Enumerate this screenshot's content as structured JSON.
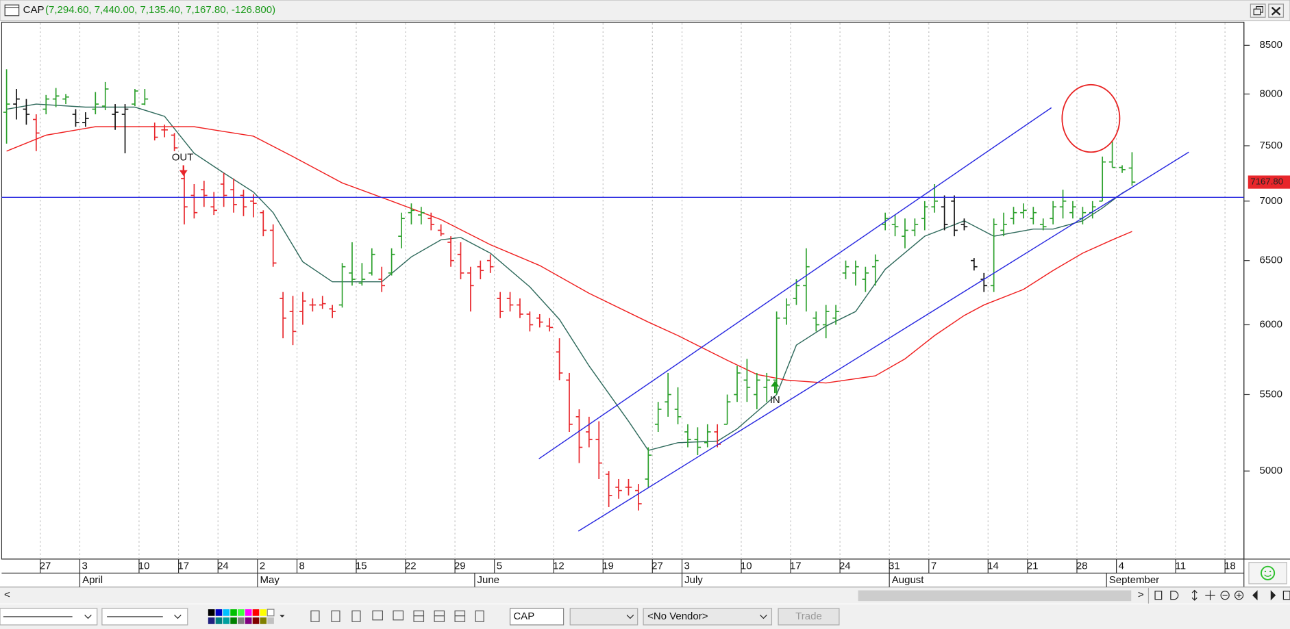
{
  "chart_data": {
    "type": "ohlc",
    "title": "CAP",
    "title_values": "(7,294.60, 7,440.00, 7,135.40, 7,167.80, -126.800)",
    "log_scale": true,
    "ylim": [
      4480,
      8740
    ],
    "yticks": [
      5000,
      5500,
      6000,
      6500,
      7000,
      7500,
      8000,
      8500
    ],
    "palette": {
      "g": "#2ca02c",
      "r": "#e8262b",
      "k": "#111111"
    },
    "categories": [
      null,
      null,
      null,
      null,
      "27",
      null,
      null,
      null,
      "3",
      null,
      null,
      null,
      null,
      null,
      "10",
      null,
      null,
      null,
      "17",
      null,
      null,
      null,
      "24",
      null,
      null,
      null,
      "2",
      null,
      null,
      null,
      "8",
      null,
      null,
      null,
      null,
      null,
      "15",
      null,
      null,
      null,
      null,
      "22",
      null,
      null,
      null,
      null,
      "29",
      null,
      null,
      null,
      "5",
      null,
      null,
      null,
      null,
      null,
      "12",
      null,
      null,
      null,
      null,
      "19",
      null,
      null,
      null,
      null,
      "27",
      null,
      null,
      "3",
      null,
      null,
      null,
      null,
      null,
      "10",
      null,
      null,
      null,
      null,
      "17",
      null,
      null,
      null,
      null,
      "24",
      null,
      null,
      null,
      null,
      "31",
      null,
      null,
      null,
      "7",
      null,
      null,
      null,
      null,
      null,
      "14",
      null,
      null,
      null,
      "21",
      null,
      null,
      null,
      null,
      "28",
      null,
      null,
      null,
      "4",
      null,
      null,
      null,
      null,
      null,
      "11",
      null,
      null,
      null,
      null,
      "18",
      null
    ],
    "months": [
      null,
      null,
      null,
      null,
      null,
      null,
      null,
      null,
      "April",
      null,
      null,
      null,
      null,
      null,
      null,
      null,
      null,
      null,
      null,
      null,
      null,
      null,
      null,
      null,
      null,
      null,
      "May",
      null,
      null,
      null,
      null,
      null,
      null,
      null,
      null,
      null,
      null,
      null,
      null,
      null,
      null,
      null,
      null,
      null,
      null,
      null,
      null,
      null,
      "June",
      null,
      null,
      null,
      null,
      null,
      null,
      null,
      null,
      null,
      null,
      null,
      null,
      null,
      null,
      null,
      null,
      null,
      null,
      null,
      null,
      "July",
      null,
      null,
      null,
      null,
      null,
      null,
      null,
      null,
      null,
      null,
      null,
      null,
      null,
      null,
      null,
      null,
      null,
      null,
      null,
      null,
      "August",
      null,
      null,
      null,
      null,
      null,
      null,
      null,
      null,
      null,
      null,
      null,
      null,
      null,
      null,
      null,
      null,
      null,
      null,
      null,
      null,
      null,
      "September",
      null,
      null,
      null,
      null,
      null,
      null,
      null,
      null,
      null,
      null,
      null,
      null,
      null
    ],
    "ohlc": [
      [
        7820,
        8250,
        7520,
        7900
      ],
      [
        7900,
        8050,
        7750,
        7950
      ],
      [
        7850,
        7950,
        7700,
        7800
      ],
      [
        7750,
        7800,
        7450,
        7620
      ],
      [
        7850,
        7990,
        7800,
        7950
      ],
      [
        7950,
        8060,
        7870,
        7980
      ],
      [
        7950,
        8000,
        7900,
        7970
      ],
      [
        7800,
        7850,
        7680,
        7720
      ],
      [
        7720,
        7820,
        7680,
        7760
      ],
      [
        7850,
        8020,
        7800,
        7900
      ],
      [
        7880,
        8120,
        7840,
        8050
      ],
      [
        7800,
        7900,
        7650,
        7820
      ],
      [
        7800,
        7900,
        7430,
        7850
      ],
      [
        7900,
        8050,
        7880,
        8030
      ],
      [
        7900,
        8050,
        7890,
        7950
      ],
      [
        7680,
        7720,
        7550,
        7580
      ],
      [
        7650,
        7700,
        7580,
        7650
      ],
      [
        7600,
        7620,
        7450,
        7480
      ],
      [
        7200,
        7250,
        6800,
        6950
      ],
      [
        7050,
        7150,
        6850,
        6900
      ],
      [
        7100,
        7180,
        6950,
        7050
      ],
      [
        6950,
        7080,
        6880,
        6920
      ],
      [
        7150,
        7250,
        6950,
        7050
      ],
      [
        7100,
        7200,
        6900,
        6970
      ],
      [
        7050,
        7100,
        6870,
        6950
      ],
      [
        7000,
        7060,
        6860,
        6980
      ],
      [
        6900,
        6920,
        6700,
        6750
      ],
      [
        6750,
        6800,
        6450,
        6480
      ],
      [
        6200,
        6250,
        5900,
        6050
      ],
      [
        6100,
        6220,
        5850,
        5950
      ],
      [
        6100,
        6250,
        6000,
        6180
      ],
      [
        6150,
        6200,
        6100,
        6150
      ],
      [
        6150,
        6220,
        6120,
        6160
      ],
      [
        6120,
        6150,
        6050,
        6100
      ],
      [
        6150,
        6480,
        6130,
        6450
      ],
      [
        6400,
        6650,
        6300,
        6350
      ],
      [
        6320,
        6480,
        6300,
        6350
      ],
      [
        6400,
        6600,
        6380,
        6550
      ],
      [
        6350,
        6450,
        6250,
        6300
      ],
      [
        6400,
        6600,
        6380,
        6550
      ],
      [
        6700,
        6900,
        6600,
        6850
      ],
      [
        6900,
        6980,
        6800,
        6920
      ],
      [
        6880,
        6950,
        6800,
        6900
      ],
      [
        6850,
        6900,
        6750,
        6800
      ],
      [
        6750,
        6800,
        6700,
        6720
      ],
      [
        6650,
        6700,
        6450,
        6500
      ],
      [
        6550,
        6650,
        6350,
        6400
      ],
      [
        6400,
        6450,
        6100,
        6300
      ],
      [
        6450,
        6500,
        6350,
        6420
      ],
      [
        6500,
        6550,
        6400,
        6450
      ],
      [
        6200,
        6250,
        6050,
        6100
      ],
      [
        6200,
        6250,
        6100,
        6150
      ],
      [
        6150,
        6200,
        6050,
        6080
      ],
      [
        6080,
        6100,
        5950,
        6000
      ],
      [
        6050,
        6080,
        5980,
        6020
      ],
      [
        5990,
        6050,
        5950,
        5980
      ],
      [
        5800,
        5900,
        5600,
        5650
      ],
      [
        5600,
        5650,
        5250,
        5300
      ],
      [
        5350,
        5400,
        5050,
        5150
      ],
      [
        5250,
        5350,
        5150,
        5200
      ],
      [
        5200,
        5320,
        4950,
        5050
      ],
      [
        4980,
        5000,
        4780,
        4850
      ],
      [
        4900,
        4950,
        4830,
        4880
      ],
      [
        4900,
        4950,
        4850,
        4900
      ],
      [
        4880,
        4920,
        4760,
        4800
      ],
      [
        4950,
        5150,
        4900,
        5100
      ],
      [
        5300,
        5450,
        5250,
        5400
      ],
      [
        5450,
        5650,
        5350,
        5500
      ],
      [
        5400,
        5550,
        5300,
        5350
      ],
      [
        5250,
        5300,
        5150,
        5200
      ],
      [
        5200,
        5280,
        5100,
        5150
      ],
      [
        5180,
        5300,
        5150,
        5250
      ],
      [
        5250,
        5300,
        5150,
        5170
      ],
      [
        5300,
        5500,
        5300,
        5450
      ],
      [
        5500,
        5700,
        5450,
        5650
      ],
      [
        5600,
        5750,
        5450,
        5550
      ],
      [
        5500,
        5650,
        5400,
        5600
      ],
      [
        5550,
        5650,
        5450,
        5600
      ],
      [
        5600,
        6100,
        5500,
        6050
      ],
      [
        6050,
        6200,
        6000,
        6150
      ],
      [
        6200,
        6350,
        6150,
        6300
      ],
      [
        6300,
        6600,
        6100,
        6450
      ],
      [
        6050,
        6100,
        5950,
        6000
      ],
      [
        6000,
        6150,
        5900,
        6100
      ],
      [
        6050,
        6150,
        6000,
        6100
      ],
      [
        6400,
        6500,
        6350,
        6450
      ],
      [
        6400,
        6500,
        6300,
        6450
      ],
      [
        6350,
        6450,
        6250,
        6400
      ],
      [
        6450,
        6550,
        6300,
        6500
      ],
      [
        6800,
        6900,
        6750,
        6850
      ],
      [
        6800,
        6880,
        6700,
        6780
      ],
      [
        6700,
        6850,
        6600,
        6750
      ],
      [
        6750,
        6850,
        6700,
        6800
      ],
      [
        6850,
        7000,
        6750,
        6950
      ],
      [
        6950,
        7150,
        6900,
        7000
      ],
      [
        6950,
        7050,
        6750,
        6800
      ],
      [
        7000,
        7050,
        6700,
        6750
      ],
      [
        6800,
        6850,
        6750,
        6780
      ],
      [
        6500,
        6520,
        6420,
        6450
      ],
      [
        6350,
        6400,
        6250,
        6300
      ],
      [
        6300,
        6850,
        6250,
        6800
      ],
      [
        6750,
        6900,
        6700,
        6800
      ],
      [
        6850,
        6950,
        6800,
        6900
      ],
      [
        6900,
        6980,
        6850,
        6920
      ],
      [
        6850,
        6950,
        6800,
        6900
      ],
      [
        6800,
        6850,
        6750,
        6780
      ],
      [
        6850,
        7000,
        6800,
        6950
      ],
      [
        6950,
        7100,
        6850,
        7000
      ],
      [
        6900,
        7000,
        6850,
        6950
      ],
      [
        6850,
        6950,
        6800,
        6900
      ],
      [
        6900,
        7000,
        6850,
        6950
      ],
      [
        7000,
        7400,
        7000,
        7350
      ],
      [
        7350,
        7550,
        7300,
        7300
      ],
      [
        7300,
        7320,
        7250,
        7280
      ],
      [
        7294.6,
        7440,
        7135.4,
        7167.8
      ]
    ],
    "bar_colors": [
      "g",
      "k",
      "k",
      "r",
      "g",
      "g",
      "g",
      "k",
      "k",
      "g",
      "g",
      "k",
      "k",
      "g",
      "g",
      "r",
      "r",
      "r",
      "r",
      "r",
      "r",
      "r",
      "r",
      "r",
      "r",
      "r",
      "r",
      "r",
      "r",
      "r",
      "r",
      "r",
      "r",
      "r",
      "g",
      "g",
      "g",
      "g",
      "r",
      "g",
      "g",
      "g",
      "g",
      "r",
      "r",
      "r",
      "r",
      "r",
      "r",
      "r",
      "r",
      "r",
      "r",
      "r",
      "r",
      "r",
      "r",
      "r",
      "r",
      "r",
      "r",
      "r",
      "r",
      "r",
      "r",
      "g",
      "g",
      "g",
      "g",
      "g",
      "g",
      "g",
      "r",
      "g",
      "g",
      "g",
      "g",
      "g",
      "g",
      "g",
      "g",
      "g",
      "g",
      "g",
      "g",
      "g",
      "g",
      "g",
      "g",
      "g",
      "g",
      "g",
      "g",
      "g",
      "g",
      "k",
      "k",
      "k",
      "k",
      "k",
      "g",
      "g",
      "g",
      "g",
      "g",
      "g",
      "g",
      "g",
      "g",
      "g",
      "g",
      "g",
      "g",
      "g",
      "g"
    ],
    "series": [
      {
        "color": "#2f6a5c",
        "x": [
          0,
          3,
          8,
          13,
          16,
          19,
          22,
          25,
          27,
          30,
          33,
          38,
          41,
          44,
          46,
          49,
          53,
          56,
          59,
          63,
          65,
          68,
          72,
          74,
          78,
          80,
          83,
          86,
          89,
          93,
          97,
          100,
          104,
          106,
          109,
          111,
          113,
          114
        ],
        "values": [
          7850,
          7900,
          7870,
          7870,
          7780,
          7430,
          7250,
          7080,
          6900,
          6490,
          6330,
          6330,
          6530,
          6670,
          6690,
          6560,
          6290,
          6040,
          5700,
          5320,
          5130,
          5180,
          5190,
          5270,
          5500,
          5850,
          5990,
          6100,
          6430,
          6700,
          6830,
          6700,
          6760,
          6760,
          6830,
          6940,
          7070,
          7120
        ]
      },
      {
        "color": "#f02020",
        "x": [
          0,
          4,
          9,
          14,
          19,
          21,
          25,
          29,
          34,
          39,
          44,
          49,
          54,
          59,
          65,
          68,
          73,
          76,
          79,
          83,
          88,
          91,
          94,
          97,
          99,
          103,
          106,
          109,
          112,
          114
        ],
        "values": [
          7450,
          7600,
          7680,
          7680,
          7680,
          7650,
          7590,
          7400,
          7160,
          7000,
          6840,
          6630,
          6460,
          6240,
          6020,
          5920,
          5740,
          5640,
          5600,
          5580,
          5630,
          5750,
          5920,
          6070,
          6150,
          6270,
          6420,
          6560,
          6670,
          6740
        ]
      }
    ],
    "last_price": {
      "value": 7167.8,
      "label": "7167.80"
    },
    "annotations": {
      "out": "OUT",
      "in": "IN"
    }
  },
  "toolbar": {
    "symbol": "CAP",
    "vendor": "<No Vendor>",
    "trade": "Trade"
  }
}
